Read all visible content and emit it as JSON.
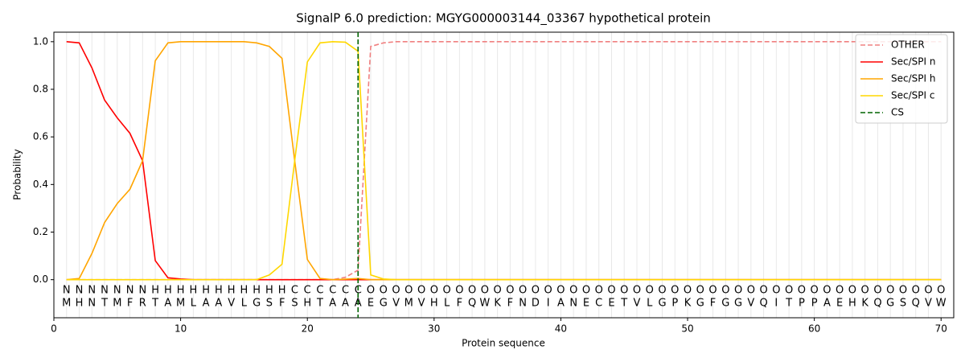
{
  "chart_data": {
    "type": "line",
    "title": "SignalP 6.0 prediction: MGYG000003144_03367 hypothetical protein",
    "xlabel": "Protein sequence",
    "ylabel": "Probability",
    "x": [
      1,
      2,
      3,
      4,
      5,
      6,
      7,
      8,
      9,
      10,
      11,
      12,
      13,
      14,
      15,
      16,
      17,
      18,
      19,
      20,
      21,
      22,
      23,
      24,
      25,
      26,
      27,
      28,
      29,
      30,
      31,
      32,
      33,
      34,
      35,
      36,
      37,
      38,
      39,
      40,
      41,
      42,
      43,
      44,
      45,
      46,
      47,
      48,
      49,
      50,
      51,
      52,
      53,
      54,
      55,
      56,
      57,
      58,
      59,
      60,
      61,
      62,
      63,
      64,
      65,
      66,
      67,
      68,
      69,
      70
    ],
    "residues": [
      "M",
      "H",
      "N",
      "T",
      "M",
      "F",
      "R",
      "T",
      "A",
      "M",
      "L",
      "A",
      "A",
      "V",
      "L",
      "G",
      "S",
      "F",
      "S",
      "H",
      "T",
      "A",
      "A",
      "A",
      "E",
      "G",
      "V",
      "M",
      "V",
      "H",
      "L",
      "F",
      "Q",
      "W",
      "K",
      "F",
      "N",
      "D",
      "I",
      "A",
      "N",
      "E",
      "C",
      "E",
      "T",
      "V",
      "L",
      "G",
      "P",
      "K",
      "G",
      "F",
      "G",
      "G",
      "V",
      "Q",
      "I",
      "T",
      "P",
      "P",
      "A",
      "E",
      "H",
      "K",
      "Q",
      "G",
      "S",
      "Q",
      "V",
      "W"
    ],
    "labels": [
      "N",
      "N",
      "N",
      "N",
      "N",
      "N",
      "N",
      "H",
      "H",
      "H",
      "H",
      "H",
      "H",
      "H",
      "H",
      "H",
      "H",
      "H",
      "C",
      "C",
      "C",
      "C",
      "C",
      "C",
      "O",
      "O",
      "O",
      "O",
      "O",
      "O",
      "O",
      "O",
      "O",
      "O",
      "O",
      "O",
      "O",
      "O",
      "O",
      "O",
      "O",
      "O",
      "O",
      "O",
      "O",
      "O",
      "O",
      "O",
      "O",
      "O",
      "O",
      "O",
      "O",
      "O",
      "O",
      "O",
      "O",
      "O",
      "O",
      "O",
      "O",
      "O",
      "O",
      "O",
      "O",
      "O",
      "O",
      "O",
      "O",
      "O"
    ],
    "label_colors": {
      "N": "#ff0000",
      "H": "#ffa500",
      "C": "#ffd700",
      "O": "#808080"
    },
    "series": [
      {
        "name": "OTHER",
        "color": "#f08080",
        "dashed": true,
        "values": [
          0,
          0,
          0,
          0,
          0,
          0,
          0,
          0,
          0,
          0,
          0,
          0,
          0,
          0,
          0,
          0,
          0,
          0,
          0,
          0,
          0,
          0,
          0.01,
          0.04,
          0.98,
          0.995,
          1,
          1,
          1,
          1,
          1,
          1,
          1,
          1,
          1,
          1,
          1,
          1,
          1,
          1,
          1,
          1,
          1,
          1,
          1,
          1,
          1,
          1,
          1,
          1,
          1,
          1,
          1,
          1,
          1,
          1,
          1,
          1,
          1,
          1,
          1,
          1,
          1,
          1,
          1,
          1,
          1,
          1,
          1,
          1
        ]
      },
      {
        "name": "Sec/SPI n",
        "color": "#ff0000",
        "values": [
          1.0,
          0.995,
          0.89,
          0.755,
          0.68,
          0.615,
          0.5,
          0.08,
          0.008,
          0.003,
          0,
          0,
          0,
          0,
          0,
          0,
          0,
          0,
          0,
          0,
          0,
          0,
          0,
          0,
          0,
          0,
          0,
          0,
          0,
          0,
          0,
          0,
          0,
          0,
          0,
          0,
          0,
          0,
          0,
          0,
          0,
          0,
          0,
          0,
          0,
          0,
          0,
          0,
          0,
          0,
          0,
          0,
          0,
          0,
          0,
          0,
          0,
          0,
          0,
          0,
          0,
          0,
          0,
          0,
          0,
          0,
          0,
          0,
          0,
          0
        ]
      },
      {
        "name": "Sec/SPI h",
        "color": "#ffa500",
        "values": [
          0,
          0.005,
          0.11,
          0.24,
          0.32,
          0.38,
          0.5,
          0.92,
          0.995,
          1,
          1,
          1,
          1,
          1,
          1,
          0.995,
          0.98,
          0.93,
          0.5,
          0.085,
          0.005,
          0,
          0.002,
          0.005,
          0,
          0,
          0,
          0,
          0,
          0,
          0,
          0,
          0,
          0,
          0,
          0,
          0,
          0,
          0,
          0,
          0,
          0,
          0,
          0,
          0,
          0,
          0,
          0,
          0,
          0,
          0,
          0,
          0,
          0,
          0,
          0,
          0,
          0,
          0,
          0,
          0,
          0,
          0,
          0,
          0,
          0,
          0,
          0,
          0,
          0
        ]
      },
      {
        "name": "Sec/SPI c",
        "color": "#ffd700",
        "values": [
          0,
          0,
          0,
          0,
          0,
          0,
          0,
          0,
          0,
          0,
          0,
          0,
          0,
          0,
          0,
          0,
          0.02,
          0.065,
          0.5,
          0.915,
          0.995,
          1,
          0.998,
          0.96,
          0.02,
          0.003,
          0,
          0,
          0,
          0,
          0,
          0,
          0,
          0,
          0,
          0,
          0,
          0,
          0,
          0,
          0,
          0,
          0,
          0,
          0,
          0,
          0,
          0,
          0,
          0,
          0,
          0,
          0,
          0,
          0,
          0,
          0,
          0,
          0,
          0,
          0,
          0,
          0,
          0,
          0,
          0,
          0,
          0,
          0,
          0
        ]
      }
    ],
    "cs": {
      "name": "CS",
      "color": "#006400",
      "x": 24
    },
    "xlim": [
      0,
      71
    ],
    "ylim": [
      -0.16,
      1.04
    ],
    "xticks": [
      0,
      10,
      20,
      30,
      40,
      50,
      60,
      70
    ],
    "yticks": [
      {
        "value": 0,
        "label": "0.0"
      },
      {
        "value": 0.2,
        "label": "0.2"
      },
      {
        "value": 0.4,
        "label": "0.4"
      },
      {
        "value": 0.6,
        "label": "0.6"
      },
      {
        "value": 0.8,
        "label": "0.8"
      },
      {
        "value": 1,
        "label": "1.0"
      }
    ],
    "legend": "upper right"
  }
}
